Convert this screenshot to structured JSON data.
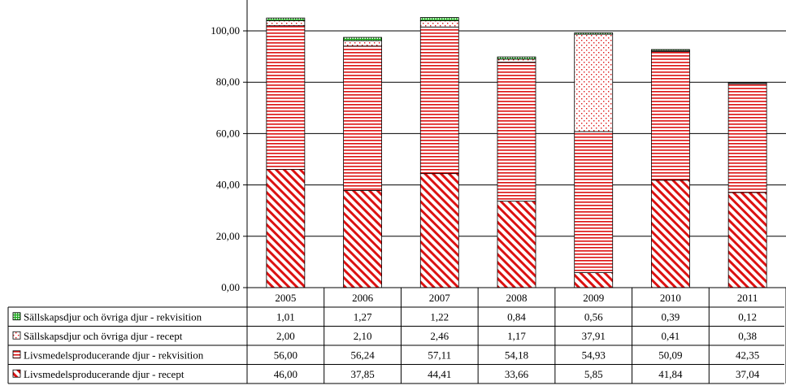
{
  "chart_data": {
    "type": "bar",
    "stacked": true,
    "categories": [
      "2005",
      "2006",
      "2007",
      "2008",
      "2009",
      "2010",
      "2011"
    ],
    "ylim": [
      0,
      100
    ],
    "yticks": [
      "0,00",
      "20,00",
      "40,00",
      "60,00",
      "80,00",
      "100,00"
    ],
    "grid": true,
    "legend_placement": "data-table-left",
    "series": [
      {
        "name": "Livsmedelsproducerande djur - recept",
        "color": "#cc0000",
        "pattern": "diagonal-hatch",
        "values": [
          46.0,
          37.85,
          44.41,
          33.66,
          5.85,
          41.84,
          37.04
        ],
        "labels": [
          "46,00",
          "37,85",
          "44,41",
          "33,66",
          "5,85",
          "41,84",
          "37,04"
        ]
      },
      {
        "name": "Livsmedelsproducerande djur - rekvisition",
        "color": "#cc0000",
        "pattern": "horizontal-lines",
        "values": [
          56.0,
          56.24,
          57.11,
          54.18,
          54.93,
          50.09,
          42.35
        ],
        "labels": [
          "56,00",
          "56,24",
          "57,11",
          "54,18",
          "54,93",
          "50,09",
          "42,35"
        ]
      },
      {
        "name": "Sällskapsdjur och övriga djur - recept",
        "color": "#cc0000",
        "pattern": "dots",
        "values": [
          2.0,
          2.1,
          2.46,
          1.17,
          37.91,
          0.41,
          0.38
        ],
        "labels": [
          "2,00",
          "2,10",
          "2,46",
          "1,17",
          "37,91",
          "0,41",
          "0,38"
        ]
      },
      {
        "name": "Sällskapsdjur och övriga djur - rekvisition",
        "color": "#33aa33",
        "pattern": "grid",
        "values": [
          1.01,
          1.27,
          1.22,
          0.84,
          0.56,
          0.39,
          0.12
        ],
        "labels": [
          "1,01",
          "1,27",
          "1,22",
          "0,84",
          "0,56",
          "0,39",
          "0,12"
        ]
      }
    ],
    "table_row_order": [
      3,
      2,
      1,
      0
    ]
  }
}
